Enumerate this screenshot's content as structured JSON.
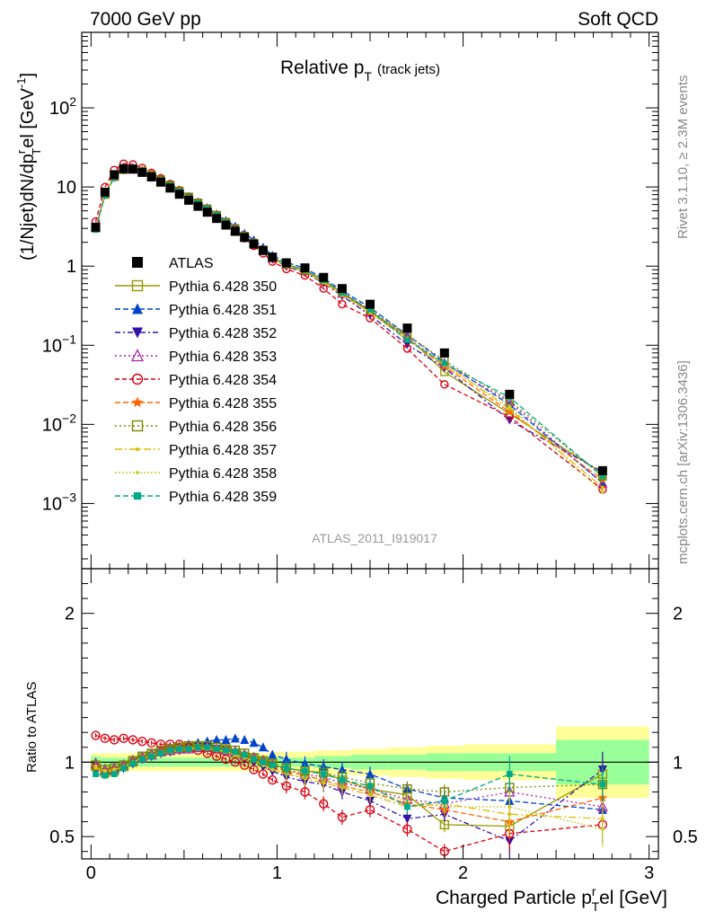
{
  "header": {
    "left": "7000 GeV pp",
    "right": "Soft QCD"
  },
  "main_plot": {
    "title_main": "Relative p",
    "title_sub": "T",
    "title_extra": "(track jets)",
    "ylabel": "(1/Njet)dN/dp",
    "ylabel_sub": "T",
    "ylabel_sup": "r",
    "ylabel_tail": "el [GeV",
    "ylabel_tail_sup": "-1",
    "ylabel_end": "]",
    "tag": "ATLAS_2011_I919017",
    "yticks": [
      {
        "value": 0.001,
        "label": "10",
        "sup": "−3"
      },
      {
        "value": 0.01,
        "label": "10",
        "sup": "−2"
      },
      {
        "value": 0.1,
        "label": "10",
        "sup": "−1"
      },
      {
        "value": 1,
        "label": "1",
        "sup": ""
      },
      {
        "value": 10,
        "label": "10",
        "sup": ""
      },
      {
        "value": 100,
        "label": "10",
        "sup": "2"
      }
    ]
  },
  "ratio_plot": {
    "ylabel": "Ratio to ATLAS",
    "yticks": [
      {
        "value": 0.5,
        "label": "0.5"
      },
      {
        "value": 1,
        "label": "1"
      },
      {
        "value": 2,
        "label": "2"
      }
    ]
  },
  "xaxis": {
    "label_main": "Charged Particle p",
    "label_sub": "T",
    "label_sup": "r",
    "label_tail": "el [GeV]",
    "ticks": [
      {
        "value": 0,
        "label": "0"
      },
      {
        "value": 1,
        "label": "1"
      },
      {
        "value": 2,
        "label": "2"
      },
      {
        "value": 3,
        "label": "3"
      }
    ]
  },
  "sidebar": {
    "rivet": "Rivet 3.1.10, ≥ 2.3M events",
    "mcplots": "mcplots.cern.ch [arXiv:1306.3436]"
  },
  "colors": {
    "data": "#000000",
    "band_inner": "#99ff99",
    "band_outer": "#ffff99"
  },
  "chart_data": {
    "type": "line",
    "xlim": [
      -0.05,
      3.05
    ],
    "ylim": [
      0.00015,
      900
    ],
    "yscale": "log",
    "ratio_ylim": [
      0.35,
      2.3
    ],
    "legend_position": "left-middle",
    "x": [
      0.025,
      0.075,
      0.125,
      0.175,
      0.225,
      0.275,
      0.325,
      0.375,
      0.425,
      0.475,
      0.525,
      0.575,
      0.625,
      0.675,
      0.725,
      0.775,
      0.825,
      0.875,
      0.925,
      0.975,
      1.05,
      1.15,
      1.25,
      1.35,
      1.5,
      1.7,
      1.9,
      2.25,
      2.75
    ],
    "bins": [
      [
        0,
        0.05
      ],
      [
        0.05,
        0.1
      ],
      [
        0.1,
        0.15
      ],
      [
        0.15,
        0.2
      ],
      [
        0.2,
        0.25
      ],
      [
        0.25,
        0.3
      ],
      [
        0.3,
        0.35
      ],
      [
        0.35,
        0.4
      ],
      [
        0.4,
        0.45
      ],
      [
        0.45,
        0.5
      ],
      [
        0.5,
        0.55
      ],
      [
        0.55,
        0.6
      ],
      [
        0.6,
        0.65
      ],
      [
        0.65,
        0.7
      ],
      [
        0.7,
        0.75
      ],
      [
        0.75,
        0.8
      ],
      [
        0.8,
        0.85
      ],
      [
        0.85,
        0.9
      ],
      [
        0.9,
        0.95
      ],
      [
        0.95,
        1.0
      ],
      [
        1.0,
        1.1
      ],
      [
        1.1,
        1.2
      ],
      [
        1.2,
        1.3
      ],
      [
        1.3,
        1.4
      ],
      [
        1.4,
        1.6
      ],
      [
        1.6,
        1.8
      ],
      [
        1.8,
        2.0
      ],
      [
        2.0,
        2.5
      ],
      [
        2.5,
        3.0
      ]
    ],
    "data": {
      "name": "ATLAS",
      "values": [
        3.1,
        8.6,
        14.3,
        17.0,
        16.8,
        15.3,
        13.4,
        11.5,
        9.7,
        8.1,
        6.8,
        5.7,
        4.8,
        4.0,
        3.3,
        2.75,
        2.3,
        1.9,
        1.58,
        1.3,
        1.1,
        0.95,
        0.72,
        0.52,
        0.33,
        0.165,
        0.08,
        0.024,
        0.0026
      ],
      "band_inner": [
        0.04,
        0.03,
        0.03,
        0.03,
        0.03,
        0.03,
        0.03,
        0.03,
        0.03,
        0.03,
        0.03,
        0.03,
        0.03,
        0.03,
        0.03,
        0.03,
        0.03,
        0.03,
        0.03,
        0.03,
        0.03,
        0.03,
        0.04,
        0.04,
        0.05,
        0.05,
        0.06,
        0.06,
        0.15
      ],
      "band_outer": [
        0.06,
        0.06,
        0.06,
        0.06,
        0.06,
        0.06,
        0.06,
        0.06,
        0.06,
        0.06,
        0.06,
        0.06,
        0.06,
        0.06,
        0.06,
        0.06,
        0.06,
        0.06,
        0.06,
        0.07,
        0.07,
        0.07,
        0.08,
        0.08,
        0.09,
        0.1,
        0.11,
        0.12,
        0.24
      ]
    },
    "series": [
      {
        "name": "Pythia 6.428 350",
        "color": "#999900",
        "dash": "",
        "marker": "square-open",
        "ratio": [
          0.97,
          0.93,
          0.94,
          0.97,
          1.0,
          1.03,
          1.05,
          1.07,
          1.08,
          1.09,
          1.1,
          1.1,
          1.1,
          1.1,
          1.08,
          1.06,
          1.04,
          1.02,
          1.0,
          0.98,
          0.96,
          0.94,
          0.93,
          0.88,
          0.82,
          0.78,
          0.58,
          0.57,
          0.92
        ],
        "values": [
          3.01,
          8.0,
          13.4,
          16.5,
          16.8,
          15.8,
          14.1,
          12.3,
          10.5,
          8.8,
          7.5,
          6.3,
          5.3,
          4.4,
          3.6,
          2.9,
          2.4,
          1.94,
          1.58,
          1.27,
          1.06,
          0.89,
          0.67,
          0.46,
          0.27,
          0.129,
          0.046,
          0.0137,
          0.0024
        ]
      },
      {
        "name": "Pythia 6.428 351",
        "color": "#0044cc",
        "dash": "6,3",
        "marker": "triangle-up",
        "ratio": [
          0.98,
          0.94,
          0.95,
          0.98,
          1.01,
          1.04,
          1.06,
          1.08,
          1.1,
          1.11,
          1.12,
          1.13,
          1.14,
          1.15,
          1.15,
          1.16,
          1.15,
          1.13,
          1.1,
          1.05,
          1.02,
          0.99,
          0.97,
          0.95,
          0.92,
          0.82,
          0.76,
          0.74,
          0.68
        ],
        "values": [
          3.04,
          8.1,
          13.6,
          16.7,
          17.0,
          15.9,
          14.2,
          12.4,
          10.7,
          9.0,
          7.6,
          6.4,
          5.5,
          4.6,
          3.8,
          3.2,
          2.6,
          2.15,
          1.74,
          1.37,
          1.12,
          0.94,
          0.7,
          0.49,
          0.3,
          0.135,
          0.061,
          0.0178,
          0.0018
        ]
      },
      {
        "name": "Pythia 6.428 352",
        "color": "#3311aa",
        "dash": "6,3,2,3",
        "marker": "triangle-down",
        "ratio": [
          0.96,
          0.92,
          0.93,
          0.96,
          0.99,
          1.02,
          1.04,
          1.06,
          1.07,
          1.08,
          1.09,
          1.1,
          1.1,
          1.09,
          1.08,
          1.06,
          1.03,
          1.0,
          0.97,
          0.94,
          0.9,
          0.87,
          0.85,
          0.8,
          0.74,
          0.62,
          0.65,
          0.47,
          0.95
        ],
        "values": [
          2.98,
          7.9,
          13.3,
          16.3,
          16.6,
          15.6,
          13.9,
          12.2,
          10.4,
          8.7,
          7.4,
          6.3,
          5.3,
          4.4,
          3.6,
          2.9,
          2.4,
          1.9,
          1.53,
          1.22,
          0.99,
          0.83,
          0.61,
          0.42,
          0.24,
          0.102,
          0.052,
          0.0113,
          0.0025
        ]
      },
      {
        "name": "Pythia 6.428 353",
        "color": "#aa22aa",
        "dash": "2,3",
        "marker": "triangle-open",
        "ratio": [
          0.99,
          0.95,
          0.96,
          0.98,
          1.01,
          1.03,
          1.05,
          1.07,
          1.08,
          1.09,
          1.09,
          1.1,
          1.1,
          1.09,
          1.08,
          1.07,
          1.05,
          1.03,
          1.01,
          0.98,
          0.95,
          0.92,
          0.9,
          0.86,
          0.82,
          0.75,
          0.72,
          0.8,
          0.7
        ],
        "values": [
          3.07,
          8.2,
          13.7,
          16.7,
          17.0,
          15.8,
          14.1,
          12.3,
          10.5,
          8.8,
          7.4,
          6.3,
          5.3,
          4.4,
          3.6,
          2.9,
          2.4,
          1.96,
          1.6,
          1.27,
          1.05,
          0.87,
          0.65,
          0.45,
          0.27,
          0.124,
          0.058,
          0.0192,
          0.0018
        ]
      },
      {
        "name": "Pythia 6.428 354",
        "color": "#dd0011",
        "dash": "5,3",
        "marker": "circle-open",
        "ratio": [
          1.18,
          1.16,
          1.15,
          1.16,
          1.15,
          1.14,
          1.13,
          1.12,
          1.12,
          1.12,
          1.1,
          1.08,
          1.06,
          1.04,
          1.02,
          1.0,
          0.98,
          0.95,
          0.92,
          0.88,
          0.84,
          0.8,
          0.72,
          0.63,
          0.68,
          0.55,
          0.4,
          0.52,
          0.58
        ],
        "values": [
          3.66,
          9.98,
          16.4,
          19.7,
          19.3,
          17.4,
          15.1,
          12.9,
          10.9,
          9.1,
          7.5,
          6.2,
          5.1,
          4.2,
          3.4,
          2.75,
          2.25,
          1.8,
          1.45,
          1.14,
          0.92,
          0.76,
          0.52,
          0.33,
          0.22,
          0.091,
          0.032,
          0.0125,
          0.0015
        ]
      },
      {
        "name": "Pythia 6.428 355",
        "color": "#ff6600",
        "dash": "6,3",
        "marker": "star",
        "ratio": [
          0.97,
          0.94,
          0.95,
          0.97,
          1.0,
          1.03,
          1.05,
          1.07,
          1.09,
          1.1,
          1.1,
          1.11,
          1.1,
          1.1,
          1.09,
          1.07,
          1.05,
          1.02,
          1.0,
          0.97,
          0.94,
          0.91,
          0.88,
          0.84,
          0.8,
          0.72,
          0.68,
          0.6,
          0.76
        ],
        "values": [
          3.0,
          8.1,
          13.6,
          16.5,
          16.8,
          15.8,
          14.1,
          12.3,
          10.6,
          8.9,
          7.5,
          6.3,
          5.3,
          4.4,
          3.6,
          2.9,
          2.4,
          1.94,
          1.58,
          1.26,
          1.03,
          0.86,
          0.63,
          0.44,
          0.26,
          0.119,
          0.054,
          0.0144,
          0.002
        ]
      },
      {
        "name": "Pythia 6.428 356",
        "color": "#778800",
        "dash": "2,3",
        "marker": "square-open",
        "ratio": [
          0.98,
          0.95,
          0.96,
          0.98,
          1.01,
          1.04,
          1.06,
          1.08,
          1.09,
          1.1,
          1.11,
          1.11,
          1.11,
          1.1,
          1.09,
          1.08,
          1.06,
          1.03,
          1.01,
          0.99,
          0.96,
          0.94,
          0.93,
          0.9,
          0.86,
          0.82,
          0.8,
          0.83,
          0.85
        ],
        "values": [
          3.04,
          8.2,
          13.7,
          16.7,
          17.0,
          15.9,
          14.2,
          12.4,
          10.6,
          8.9,
          7.5,
          6.3,
          5.3,
          4.4,
          3.6,
          3.0,
          2.4,
          1.96,
          1.6,
          1.29,
          1.06,
          0.89,
          0.67,
          0.47,
          0.28,
          0.135,
          0.064,
          0.02,
          0.0022
        ]
      },
      {
        "name": "Pythia 6.428 357",
        "color": "#ddbb00",
        "dash": "8,3,2,3",
        "marker": "dot",
        "ratio": [
          0.96,
          0.93,
          0.94,
          0.97,
          1.0,
          1.03,
          1.05,
          1.06,
          1.08,
          1.09,
          1.09,
          1.1,
          1.09,
          1.09,
          1.07,
          1.05,
          1.03,
          1.01,
          0.98,
          0.95,
          0.92,
          0.89,
          0.86,
          0.83,
          0.78,
          0.7,
          0.72,
          0.65,
          0.62
        ],
        "values": [
          2.98,
          8.0,
          13.4,
          16.5,
          16.8,
          15.8,
          14.1,
          12.2,
          10.5,
          8.8,
          7.4,
          6.3,
          5.2,
          4.4,
          3.5,
          2.9,
          2.4,
          1.92,
          1.55,
          1.24,
          1.01,
          0.85,
          0.62,
          0.43,
          0.26,
          0.116,
          0.058,
          0.0156,
          0.0016
        ]
      },
      {
        "name": "Pythia 6.428 358",
        "color": "#cccc33",
        "dash": "2,2",
        "marker": "dot",
        "ratio": [
          0.97,
          0.94,
          0.95,
          0.97,
          1.0,
          1.02,
          1.04,
          1.06,
          1.07,
          1.08,
          1.09,
          1.09,
          1.09,
          1.08,
          1.07,
          1.05,
          1.03,
          1.01,
          0.98,
          0.95,
          0.92,
          0.9,
          0.88,
          0.84,
          0.8,
          0.74,
          0.7,
          0.7,
          0.55
        ],
        "values": [
          3.0,
          8.1,
          13.6,
          16.5,
          16.8,
          15.6,
          13.9,
          12.2,
          10.4,
          8.7,
          7.4,
          6.2,
          5.2,
          4.3,
          3.5,
          2.9,
          2.4,
          1.92,
          1.55,
          1.24,
          1.01,
          0.86,
          0.63,
          0.44,
          0.26,
          0.122,
          0.056,
          0.0168,
          0.0014
        ]
      },
      {
        "name": "Pythia 6.428 359",
        "color": "#00aa88",
        "dash": "6,3",
        "marker": "square",
        "ratio": [
          0.92,
          0.91,
          0.92,
          0.96,
          0.99,
          1.02,
          1.04,
          1.06,
          1.08,
          1.09,
          1.09,
          1.1,
          1.1,
          1.09,
          1.08,
          1.07,
          1.05,
          1.02,
          1.0,
          0.98,
          0.96,
          0.94,
          0.92,
          0.88,
          0.84,
          0.7,
          0.74,
          0.92,
          0.85
        ],
        "values": [
          2.85,
          7.8,
          13.2,
          16.3,
          16.6,
          15.6,
          13.9,
          12.2,
          10.5,
          8.8,
          7.4,
          6.3,
          5.3,
          4.4,
          3.6,
          2.9,
          2.4,
          1.94,
          1.58,
          1.27,
          1.06,
          0.89,
          0.66,
          0.46,
          0.28,
          0.116,
          0.059,
          0.022,
          0.0022
        ]
      }
    ]
  }
}
